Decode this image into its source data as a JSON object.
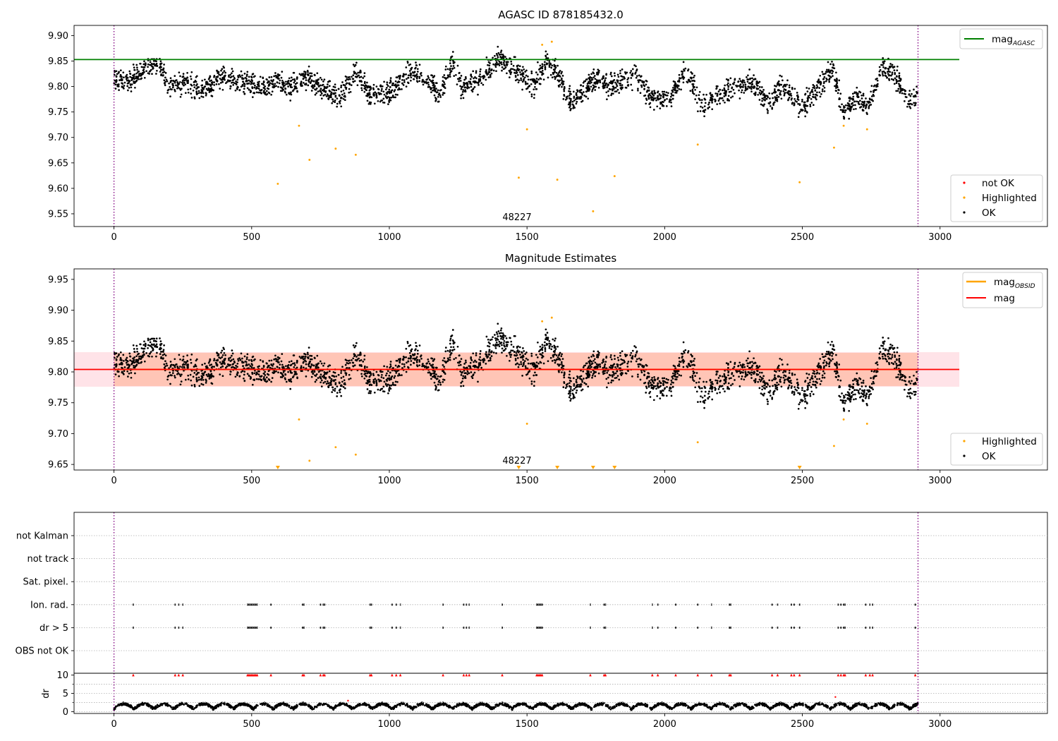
{
  "figure": {
    "panel1_title": "AGASC ID 878185432.0",
    "panel2_title": "Magnitude Estimates",
    "obsid_label": "48227"
  },
  "colors": {
    "ok": "#000000",
    "highlighted": "#ffa500",
    "not_ok": "#ff0000",
    "mag_agasc_line": "#008000",
    "mag_obsid_line": "#ffa500",
    "mag_line": "#ff0000",
    "band_mag": "#ffc0cb",
    "band_obsid": "#ffa07a",
    "vline": "#800080"
  },
  "chart_data": [
    {
      "type": "scatter",
      "title": "AGASC ID 878185432.0",
      "xlim": [
        -145,
        3390
      ],
      "ylim": [
        9.525,
        9.92
      ],
      "xticks": [
        0,
        500,
        1000,
        1500,
        2000,
        2500,
        3000
      ],
      "yticks": [
        "9.55",
        "9.60",
        "9.65",
        "9.70",
        "9.75",
        "9.80",
        "9.85",
        "9.90"
      ],
      "hline": {
        "name": "mag_AGASC",
        "value": 9.853,
        "x_range": [
          -145,
          3070
        ]
      },
      "vlines": [
        0,
        2920
      ],
      "annotation": {
        "text": "48227",
        "x": 1460,
        "y": 9.535
      },
      "legend_upper": {
        "placement": "upper right",
        "entries": [
          {
            "label": "mag",
            "sub": "AGASC"
          }
        ]
      },
      "legend_lower": {
        "placement": "lower right",
        "entries": [
          "not OK",
          "Highlighted",
          "OK"
        ]
      },
      "series": [
        {
          "name": "OK",
          "type": "scatter",
          "description": "~2900 dense points, magnitude 9.73-9.87 across x 0-2920"
        },
        {
          "name": "Highlighted",
          "points": [
            [
              595,
              9.609
            ],
            [
              672,
              9.723
            ],
            [
              710,
              9.656
            ],
            [
              805,
              9.678
            ],
            [
              878,
              9.666
            ],
            [
              1470,
              9.621
            ],
            [
              1500,
              9.716
            ],
            [
              1555,
              9.882
            ],
            [
              1590,
              9.888
            ],
            [
              1610,
              9.617
            ],
            [
              1740,
              9.555
            ],
            [
              1818,
              9.624
            ],
            [
              2120,
              9.686
            ],
            [
              2490,
              9.612
            ],
            [
              2615,
              9.68
            ],
            [
              2650,
              9.723
            ],
            [
              2735,
              9.716
            ]
          ]
        },
        {
          "name": "not OK",
          "points": []
        }
      ]
    },
    {
      "type": "scatter",
      "title": "Magnitude Estimates",
      "xlim": [
        -145,
        3390
      ],
      "ylim": [
        9.641,
        9.967
      ],
      "xticks": [
        0,
        500,
        1000,
        1500,
        2000,
        2500,
        3000
      ],
      "yticks": [
        "9.65",
        "9.70",
        "9.75",
        "9.80",
        "9.85",
        "9.90",
        "9.95"
      ],
      "hlines": [
        {
          "name": "mag",
          "value": 9.804,
          "band": [
            9.776,
            9.832
          ],
          "x_range": [
            -145,
            3070
          ]
        },
        {
          "name": "mag_OBSID",
          "value": 9.804,
          "band": [
            9.777,
            9.831
          ],
          "x_range": [
            0,
            2920
          ]
        }
      ],
      "vlines": [
        0,
        2920
      ],
      "annotation": {
        "text": "48227",
        "x": 1460,
        "y": 9.652
      },
      "legend_upper": {
        "placement": "upper right",
        "entries": [
          {
            "label": "mag",
            "sub": "OBSID"
          },
          {
            "label": "mag",
            "sub": ""
          }
        ]
      },
      "legend_lower": {
        "placement": "lower right",
        "entries": [
          "Highlighted",
          "OK"
        ]
      },
      "lower_limit_markers_x": [
        595,
        1470,
        1610,
        1740,
        1818,
        2490
      ],
      "series": [
        {
          "name": "OK",
          "type": "scatter",
          "description": "same ~2900 dense points as upper panel"
        },
        {
          "name": "Highlighted",
          "points": [
            [
              672,
              9.723
            ],
            [
              710,
              9.656
            ],
            [
              805,
              9.678
            ],
            [
              878,
              9.666
            ],
            [
              1500,
              9.716
            ],
            [
              1555,
              9.882
            ],
            [
              1590,
              9.888
            ],
            [
              2120,
              9.686
            ],
            [
              2615,
              9.68
            ],
            [
              2650,
              9.723
            ],
            [
              2735,
              9.716
            ]
          ]
        }
      ]
    },
    {
      "type": "scatter",
      "title": "",
      "xlim": [
        -145,
        3390
      ],
      "categories": [
        "not Kalman",
        "not track",
        "Sat. pixel.",
        "Ion. rad.",
        "dr > 5",
        "OBS not OK"
      ],
      "flag_x_clusters": [
        70,
        222,
        235,
        250,
        485,
        490,
        495,
        500,
        505,
        510,
        515,
        520,
        570,
        685,
        690,
        750,
        760,
        765,
        930,
        935,
        1010,
        1025,
        1040,
        1195,
        1270,
        1280,
        1290,
        1410,
        1535,
        1540,
        1545,
        1550,
        1555,
        1730,
        1780,
        1785,
        1955,
        1975,
        2040,
        2120,
        2170,
        2235,
        2240,
        2390,
        2410,
        2460,
        2470,
        2490,
        2630,
        2640,
        2650,
        2655,
        2730,
        2745,
        2755,
        2910
      ],
      "dr_panel": {
        "ylabel": "dr",
        "yticks": [
          "0",
          "5",
          "10"
        ],
        "ylim": [
          -0.5,
          10.5
        ],
        "red_markers_at": 10,
        "outliers": [
          [
            850,
            3.0
          ],
          [
            2620,
            4.0
          ]
        ],
        "description": "black dense points mostly between 0.3 and 2.5"
      },
      "vlines": [
        0,
        2920
      ],
      "xticks": [
        0,
        500,
        1000,
        1500,
        2000,
        2500,
        3000
      ]
    }
  ]
}
